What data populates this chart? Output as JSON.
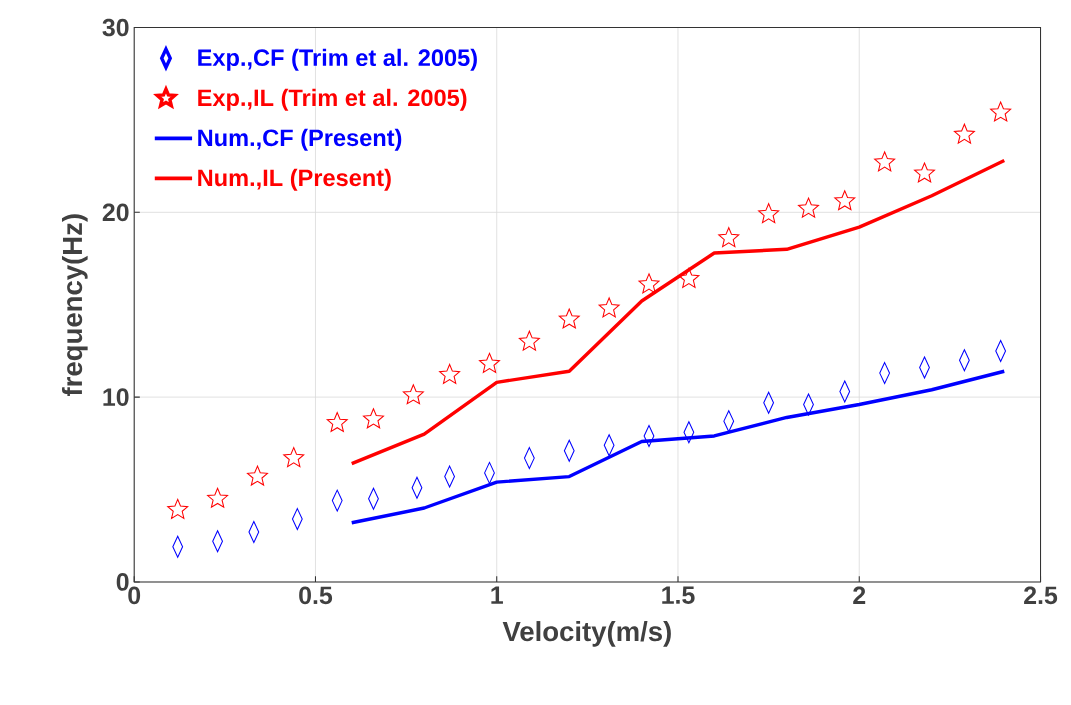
{
  "chart_data": {
    "type": "scatter",
    "xlabel": "Velocity(m/s)",
    "ylabel": "frequency(Hz)",
    "xlim": [
      0,
      2.5
    ],
    "ylim": [
      0,
      30
    ],
    "xticks": [
      0,
      0.5,
      1,
      1.5,
      2,
      2.5
    ],
    "yticks": [
      0,
      10,
      20,
      30
    ],
    "grid": true,
    "legend": "top left",
    "series": [
      {
        "name": "Exp.,CF (Trim et al. 2005)",
        "marker": "diamond",
        "color": "#0000ff",
        "x": [
          0.12,
          0.23,
          0.33,
          0.45,
          0.56,
          0.66,
          0.78,
          0.87,
          0.98,
          1.09,
          1.2,
          1.31,
          1.42,
          1.53,
          1.64,
          1.75,
          1.86,
          1.96,
          2.07,
          2.18,
          2.29,
          2.39
        ],
        "values": [
          1.9,
          2.2,
          2.7,
          3.4,
          4.4,
          4.5,
          5.1,
          5.7,
          5.9,
          6.7,
          7.1,
          7.4,
          7.9,
          8.1,
          8.7,
          9.7,
          9.6,
          10.3,
          11.3,
          11.6,
          12.0,
          12.5
        ]
      },
      {
        "name": "Exp.,IL (Trim et al. 2005)",
        "marker": "star",
        "color": "#ff0000",
        "x": [
          0.12,
          0.23,
          0.34,
          0.44,
          0.56,
          0.66,
          0.77,
          0.87,
          0.98,
          1.09,
          1.2,
          1.31,
          1.42,
          1.53,
          1.64,
          1.75,
          1.86,
          1.96,
          2.07,
          2.18,
          2.29,
          2.39
        ],
        "values": [
          3.9,
          4.5,
          5.7,
          6.7,
          8.6,
          8.8,
          10.1,
          11.2,
          11.8,
          13.0,
          14.2,
          14.8,
          16.1,
          16.4,
          18.6,
          19.9,
          20.2,
          20.6,
          22.7,
          22.1,
          24.2,
          25.4
        ]
      },
      {
        "name": "Num.,CF (Present)",
        "type": "line",
        "line_style": "solid",
        "color": "#0000ff",
        "x": [
          0.6,
          0.8,
          1.0,
          1.2,
          1.4,
          1.6,
          1.8,
          2.0,
          2.2,
          2.4
        ],
        "values": [
          3.2,
          4.0,
          5.4,
          5.7,
          7.6,
          7.9,
          8.9,
          9.6,
          10.4,
          11.4
        ]
      },
      {
        "name": "Num.,IL (Present)",
        "type": "line",
        "line_style": "solid",
        "color": "#ff0000",
        "x": [
          0.6,
          0.8,
          1.0,
          1.2,
          1.4,
          1.6,
          1.8,
          2.0,
          2.2,
          2.4
        ],
        "values": [
          6.4,
          8.0,
          10.8,
          11.4,
          15.2,
          17.8,
          18.0,
          19.2,
          20.9,
          22.8
        ]
      }
    ]
  }
}
